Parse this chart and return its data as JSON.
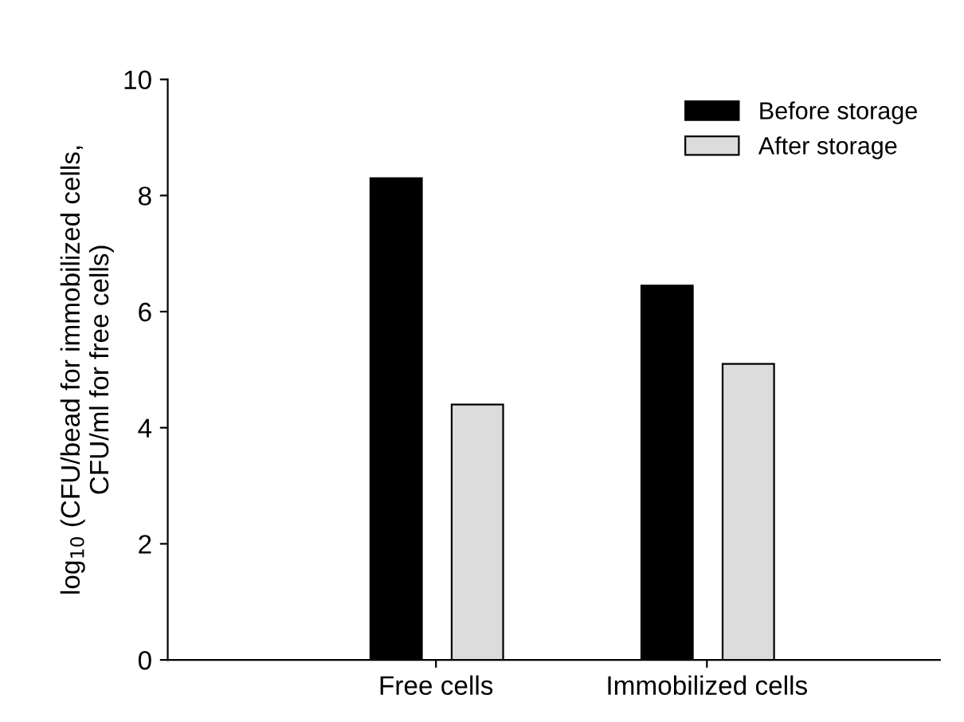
{
  "chart_data": {
    "type": "bar",
    "ylabel": "log$_{10}$ (CFU/bead for immobilized cells,\nCFU/ml for free cells)",
    "categories": [
      "Free cells",
      "Immobilized cells"
    ],
    "series": [
      {
        "name": "Before storage",
        "color": "#000000",
        "values": [
          8.3,
          6.45
        ]
      },
      {
        "name": "After storage",
        "color": "#dcdcdc",
        "values": [
          4.4,
          5.1
        ]
      }
    ],
    "ylim": [
      0,
      10
    ],
    "yticks": [
      0,
      2,
      4,
      6,
      8,
      10
    ],
    "grid": false,
    "legend": "top right"
  }
}
